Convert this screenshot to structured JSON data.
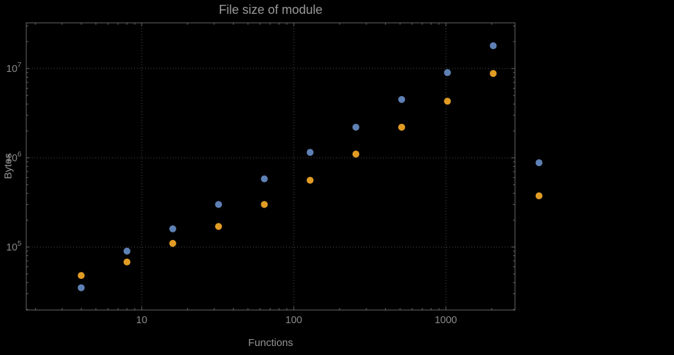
{
  "title": "File size of module",
  "colors": {
    "background": "#000000",
    "frame": "#6a6a6a",
    "grid": "#555555",
    "title_text": "#9b9b9b",
    "axis_label_text": "#949494",
    "tick_text": "#8c8c8c",
    "series_blue": "#5e81b5",
    "series_orange": "#e19c24"
  },
  "chart_data": {
    "type": "scatter",
    "title": "File size of module",
    "xlabel": "Functions",
    "ylabel": "Bytes",
    "x_scale": "log",
    "y_scale": "log",
    "grid": true,
    "legend": "none",
    "xlim_frame": [
      1.7,
      2900
    ],
    "ylim_frame": [
      20000,
      32000000
    ],
    "x_ticks": [
      {
        "label": "10",
        "value": 10
      },
      {
        "label": "100",
        "value": 100
      },
      {
        "label": "1000",
        "value": 1000
      }
    ],
    "y_ticks": [
      {
        "base": "10",
        "exp": "5",
        "value": 100000
      },
      {
        "base": "10",
        "exp": "6",
        "value": 1000000
      },
      {
        "base": "10",
        "exp": "7",
        "value": 10000000
      }
    ],
    "series": [
      {
        "name": "blue",
        "color": "#5e81b5",
        "points": [
          [
            4,
            35000
          ],
          [
            8,
            90000
          ],
          [
            16,
            160000
          ],
          [
            32,
            300000
          ],
          [
            64,
            580000
          ],
          [
            128,
            1150000
          ],
          [
            256,
            2200000
          ],
          [
            512,
            4500000
          ],
          [
            1024,
            9000000
          ],
          [
            2048,
            18000000
          ],
          [
            4096,
            880000
          ]
        ]
      },
      {
        "name": "orange",
        "color": "#e19c24",
        "points": [
          [
            4,
            48000
          ],
          [
            8,
            68000
          ],
          [
            16,
            110000
          ],
          [
            32,
            170000
          ],
          [
            64,
            300000
          ],
          [
            128,
            560000
          ],
          [
            256,
            1100000
          ],
          [
            512,
            2200000
          ],
          [
            1024,
            4300000
          ],
          [
            2048,
            8800000
          ],
          [
            4096,
            375000
          ]
        ]
      }
    ]
  }
}
